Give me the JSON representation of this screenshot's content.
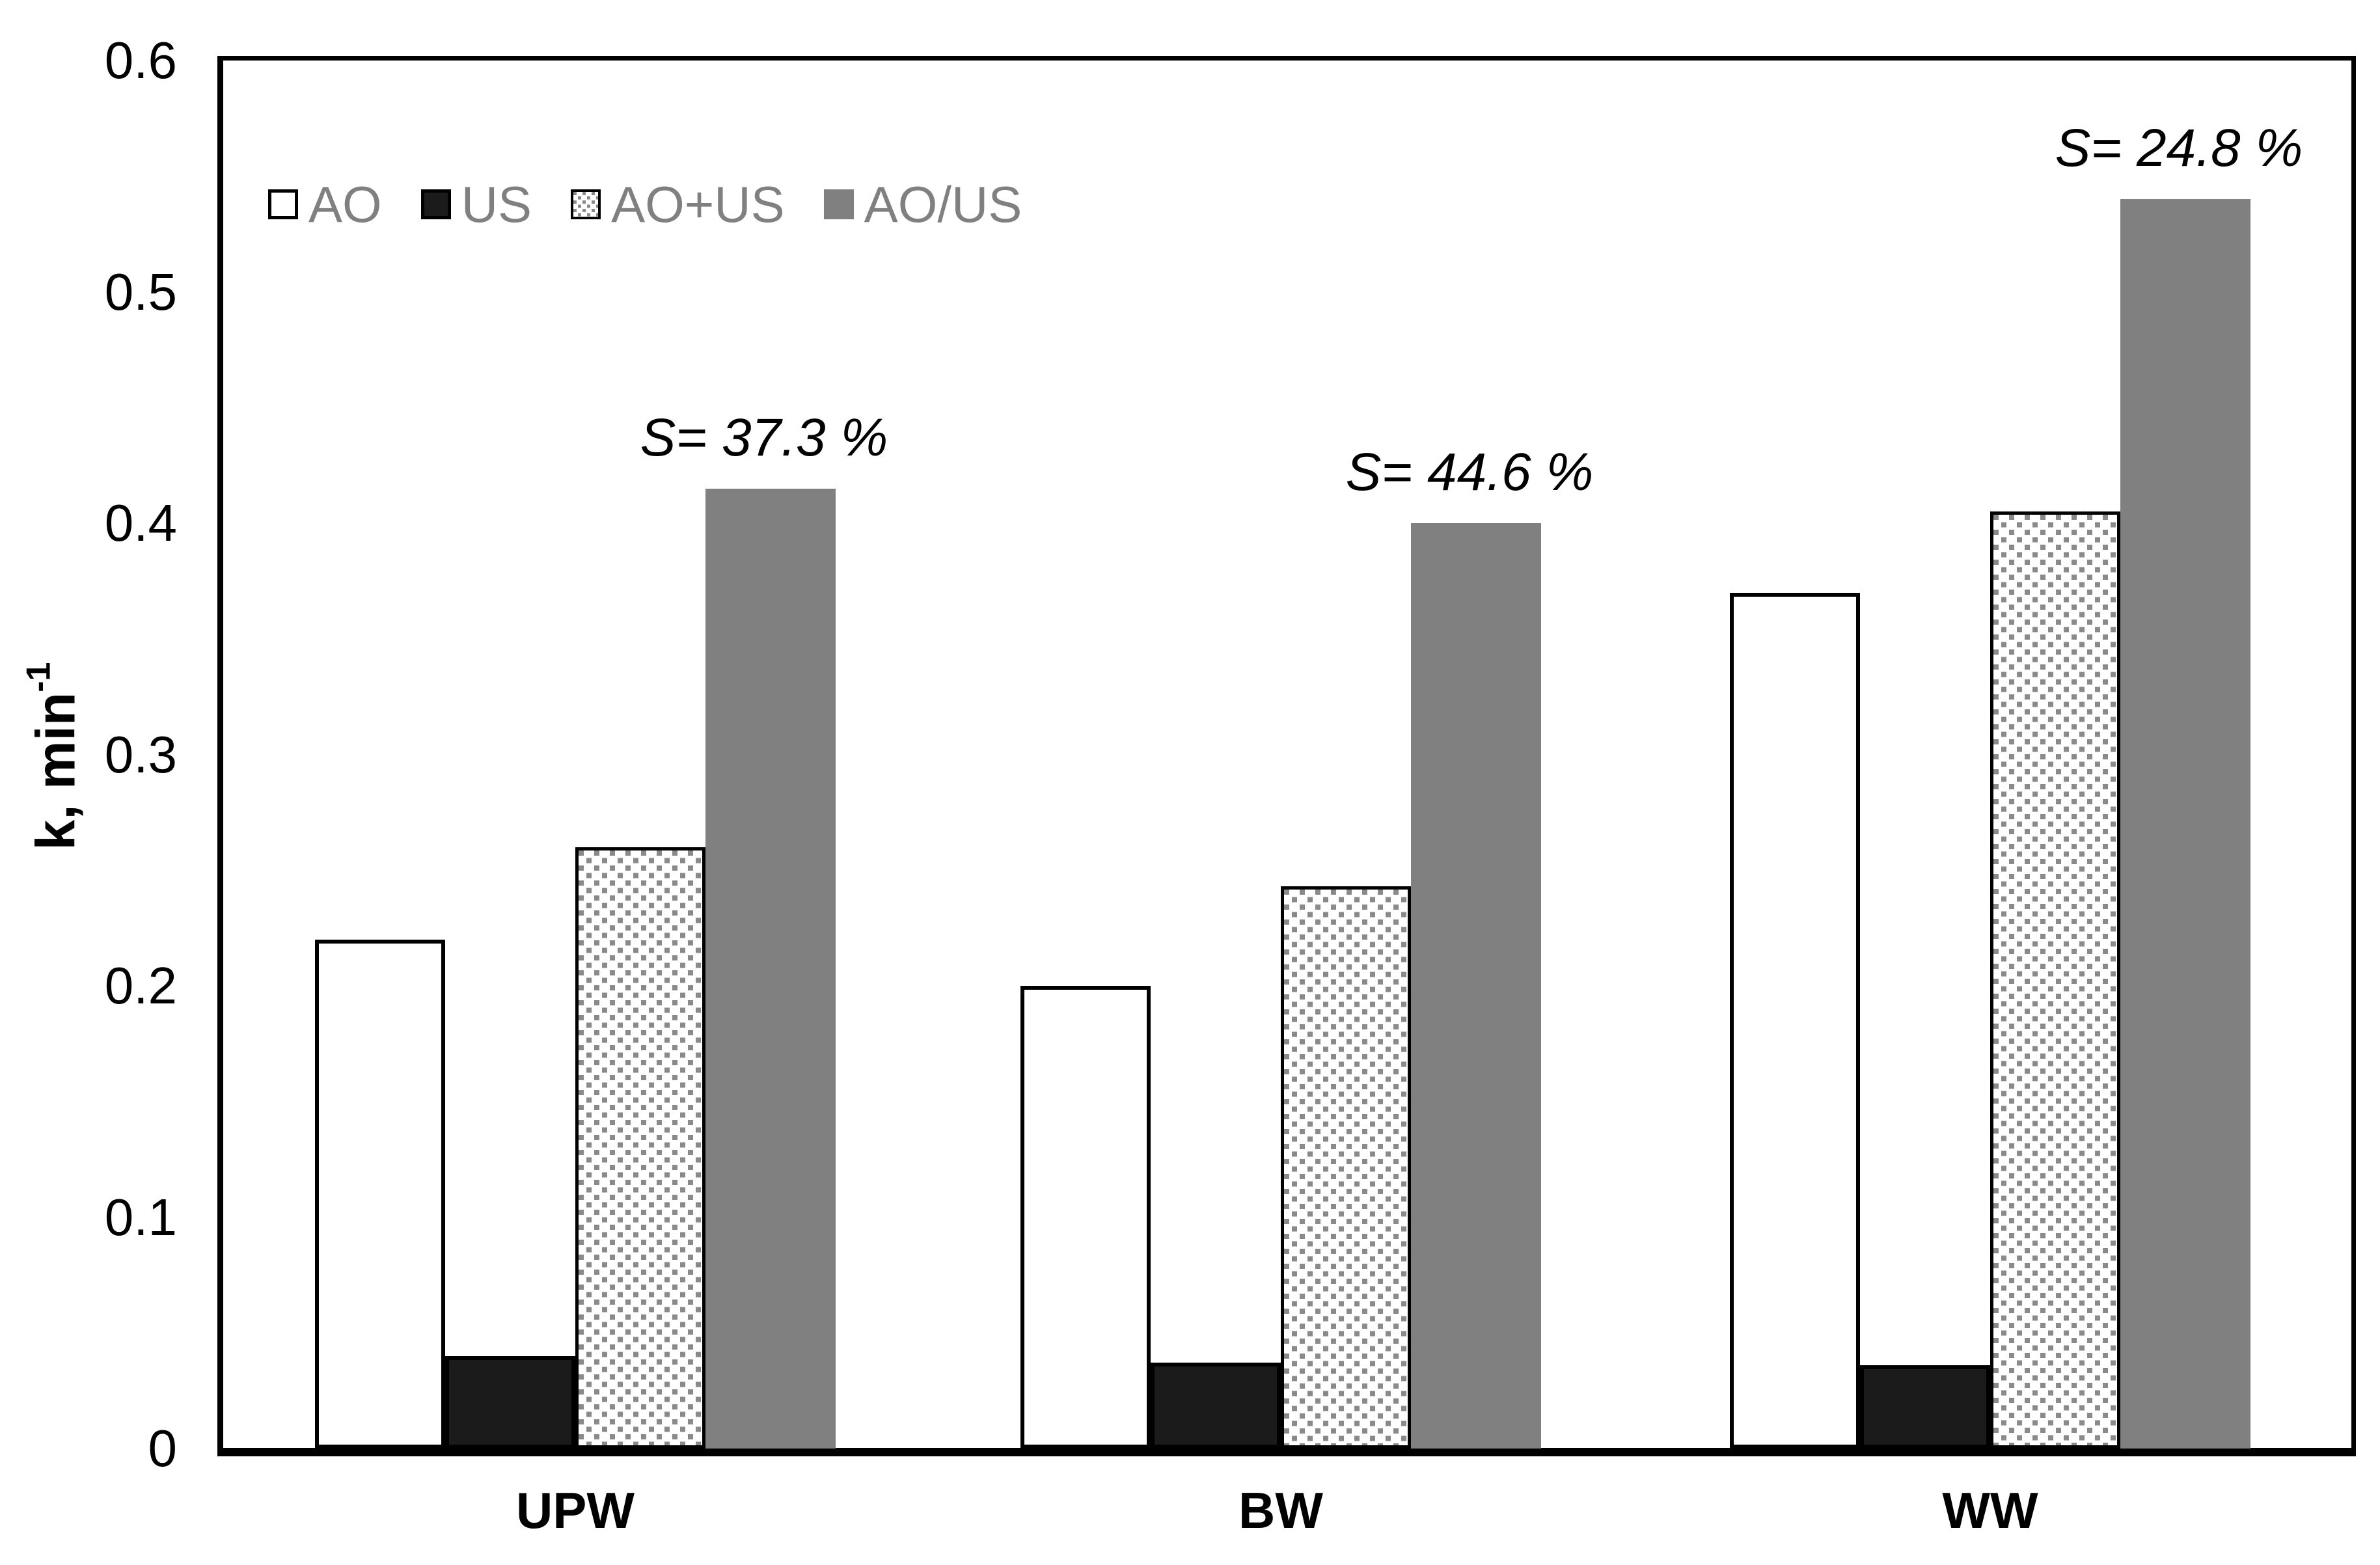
{
  "chart_data": {
    "type": "bar",
    "title": "",
    "xlabel": "",
    "ylabel": "k, min^-1",
    "ylim": [
      0,
      0.6
    ],
    "ytick_step": 0.1,
    "grid": false,
    "legend_position": "top-left-inside-horizontal",
    "categories": [
      "UPW",
      "BW",
      "WW"
    ],
    "series": [
      {
        "name": "AO",
        "style": "white",
        "values": [
          0.22,
          0.2,
          0.37
        ]
      },
      {
        "name": "US",
        "style": "black",
        "values": [
          0.04,
          0.037,
          0.036
        ]
      },
      {
        "name": "AO+US",
        "style": "dotted",
        "values": [
          0.26,
          0.243,
          0.405
        ]
      },
      {
        "name": "AO/US",
        "style": "gray",
        "values": [
          0.415,
          0.4,
          0.54
        ]
      }
    ],
    "annotations": [
      {
        "text": "S= 37.3 %",
        "category": "UPW",
        "above_series": "AO/US"
      },
      {
        "text": "S= 44.6 %",
        "category": "BW",
        "above_series": "AO/US"
      },
      {
        "text": "S= 24.8 %",
        "category": "WW",
        "above_series": "AO/US"
      }
    ],
    "yticks": [
      "0",
      "0.1",
      "0.2",
      "0.3",
      "0.4",
      "0.5",
      "0.6"
    ]
  },
  "y_axis": {
    "title_base": "k, min",
    "title_exponent": "-1"
  },
  "colors": {
    "bar_white_fill": "#ffffff",
    "bar_black_fill": "#1b1b1b",
    "bar_gray_fill": "#808080",
    "dot_pattern_gray": "#8a8a8a",
    "border_black": "#000000",
    "legend_text_gray": "#808080",
    "annotation_text": "#000000"
  }
}
